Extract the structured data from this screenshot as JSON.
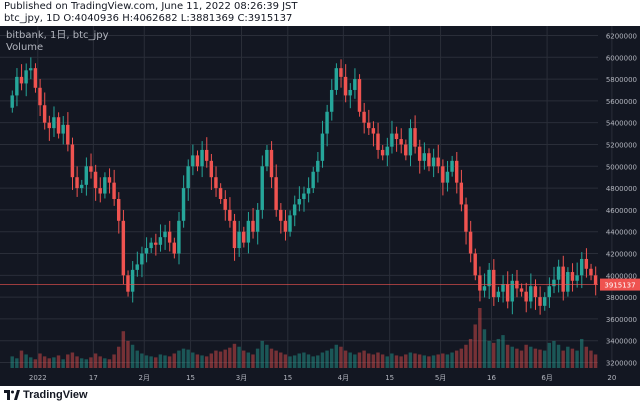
{
  "header": {
    "published": "Published on TradingView.com, June 11, 2022 08:26:39 JST",
    "ohlc": "btc_jpy, 1D O:4040936 H:4062682 L:3881369 C:3915137"
  },
  "legend": {
    "symbol": "bitbank, 1日, btc_jpy",
    "volume": "Volume"
  },
  "footer": {
    "brand": "TradingView"
  },
  "colors": {
    "up": "#26a69a",
    "down": "#ef5350",
    "bg": "#131722",
    "grid": "#2a2e39",
    "text": "#b2b5be",
    "price_label": "#ef5350"
  },
  "chart_data": {
    "type": "candlestick",
    "y_ticks": [
      3200000,
      3400000,
      3600000,
      3800000,
      4000000,
      4200000,
      4400000,
      4600000,
      4800000,
      5000000,
      5200000,
      5400000,
      5600000,
      5800000,
      6000000,
      6200000
    ],
    "ylim": [
      3150000,
      6250000
    ],
    "x_ticks": [
      "2022",
      "17",
      "2月",
      "15",
      "3月",
      "15",
      "4月",
      "15",
      "5月",
      "16",
      "6月",
      "20"
    ],
    "last_price": 3915137,
    "closes": [
      5650000,
      5820000,
      5760000,
      5880000,
      5900000,
      5720000,
      5560000,
      5400000,
      5350000,
      5450000,
      5300000,
      5380000,
      5200000,
      4900000,
      4800000,
      4830000,
      5000000,
      4950000,
      4800000,
      4750000,
      4900000,
      4850000,
      4700000,
      4500000,
      4000000,
      3850000,
      4050000,
      4100000,
      4200000,
      4250000,
      4300000,
      4280000,
      4350000,
      4400000,
      4300000,
      4200000,
      4500000,
      4800000,
      5000000,
      5100000,
      5000000,
      5150000,
      5050000,
      4900000,
      4800000,
      4700000,
      4600000,
      4500000,
      4250000,
      4400000,
      4300000,
      4500000,
      4400000,
      4600000,
      5000000,
      5150000,
      4900000,
      4600000,
      4500000,
      4400000,
      4550000,
      4650000,
      4700000,
      4750000,
      4800000,
      4950000,
      5050000,
      5300000,
      5500000,
      5700000,
      5900000,
      5820000,
      5650000,
      5700000,
      5800000,
      5500000,
      5400000,
      5350000,
      5300000,
      5150000,
      5100000,
      5180000,
      5300000,
      5250000,
      5200000,
      5100000,
      5350000,
      5180000,
      5050000,
      5120000,
      5000000,
      5080000,
      5000000,
      4850000,
      4950000,
      5050000,
      4850000,
      4650000,
      4400000,
      4200000,
      4000000,
      3860000,
      3900000,
      4050000,
      3800000,
      3850000,
      3920000,
      3760000,
      3950000,
      3880000,
      3850000,
      3760000,
      3900000,
      3800000,
      3720000,
      3800000,
      3900000,
      3960000,
      4080000,
      3850000,
      4030000,
      3950000,
      4000000,
      4150000,
      4060000,
      4000000,
      3915137
    ],
    "volumes": [
      12,
      10,
      18,
      14,
      11,
      9,
      15,
      12,
      10,
      11,
      13,
      9,
      14,
      16,
      12,
      10,
      9,
      11,
      15,
      12,
      10,
      9,
      14,
      22,
      38,
      28,
      24,
      18,
      15,
      13,
      12,
      11,
      14,
      13,
      12,
      15,
      18,
      20,
      19,
      16,
      14,
      13,
      12,
      15,
      18,
      17,
      19,
      21,
      25,
      22,
      18,
      16,
      14,
      20,
      28,
      24,
      20,
      18,
      16,
      14,
      12,
      13,
      15,
      16,
      14,
      12,
      13,
      16,
      18,
      20,
      24,
      22,
      18,
      16,
      14,
      16,
      18,
      15,
      14,
      16,
      14,
      12,
      15,
      13,
      12,
      14,
      16,
      15,
      14,
      13,
      12,
      13,
      14,
      15,
      14,
      16,
      18,
      20,
      24,
      30,
      45,
      62,
      40,
      28,
      26,
      30,
      34,
      24,
      22,
      20,
      18,
      24,
      22,
      20,
      19,
      18,
      26,
      28,
      24,
      18,
      22,
      20,
      18,
      30,
      22,
      18,
      14
    ]
  }
}
